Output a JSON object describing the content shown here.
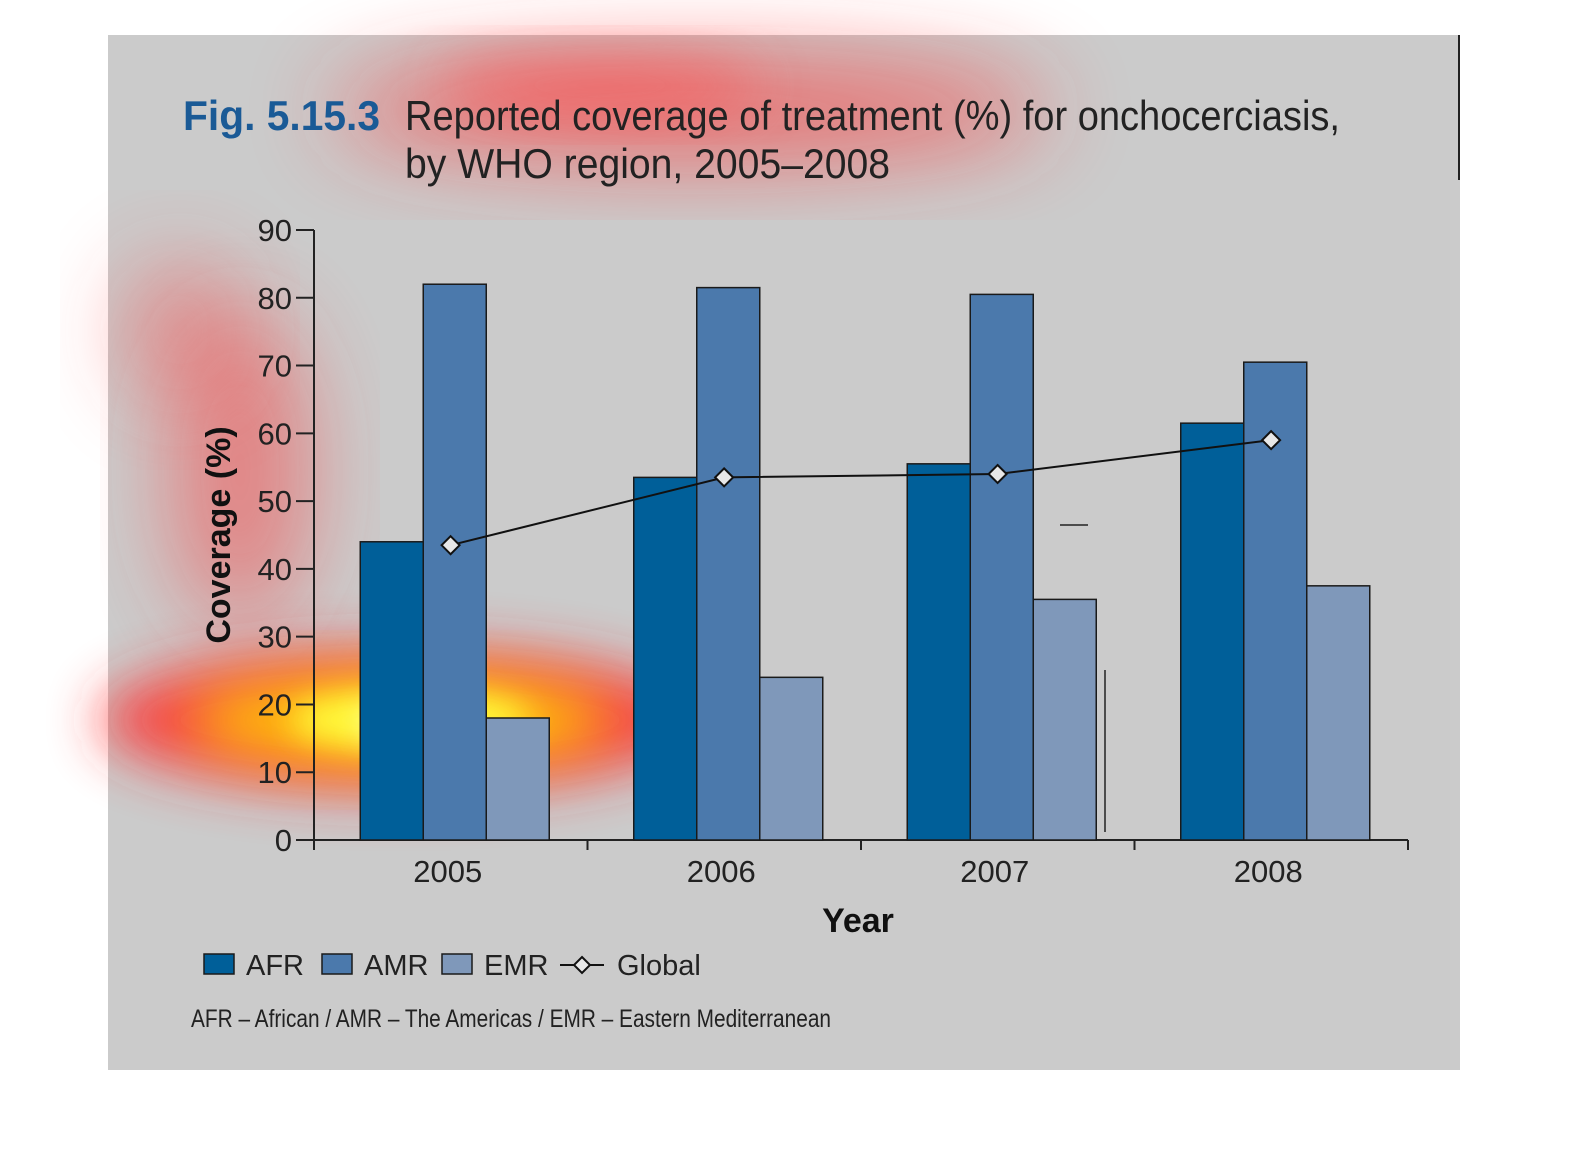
{
  "figure": {
    "number": "Fig. 5.15.3",
    "title_line1": "Reported coverage of treatment (%) for onchocerciasis,",
    "title_line2": "by WHO region, 2005–2008",
    "footnote": "AFR – African / AMR – The Americas / EMR – Eastern Mediterranean"
  },
  "chart_data": {
    "type": "bar",
    "categories": [
      "2005",
      "2006",
      "2007",
      "2008"
    ],
    "series": [
      {
        "name": "AFR",
        "kind": "bar",
        "color": "#005f99",
        "values": [
          44,
          53.5,
          55.5,
          61.5
        ]
      },
      {
        "name": "AMR",
        "kind": "bar",
        "color": "#4b79ac",
        "values": [
          82,
          81.5,
          80.5,
          70.5
        ]
      },
      {
        "name": "EMR",
        "kind": "bar",
        "color": "#7f98ba",
        "values": [
          18,
          24,
          35.5,
          37.5
        ]
      },
      {
        "name": "Global",
        "kind": "line",
        "color": "#111111",
        "values": [
          43.5,
          53.5,
          54,
          59
        ]
      }
    ],
    "xlabel": "Year",
    "ylabel": "Coverage (%)",
    "ylim": [
      0,
      90
    ],
    "yticks": [
      0,
      10,
      20,
      30,
      40,
      50,
      60,
      70,
      80,
      90
    ],
    "grid": false,
    "legend": "bottom-left"
  },
  "colors": {
    "panel_background": "#cbcbcb",
    "figure_number": "#1a5a96",
    "title_text": "#222222"
  }
}
